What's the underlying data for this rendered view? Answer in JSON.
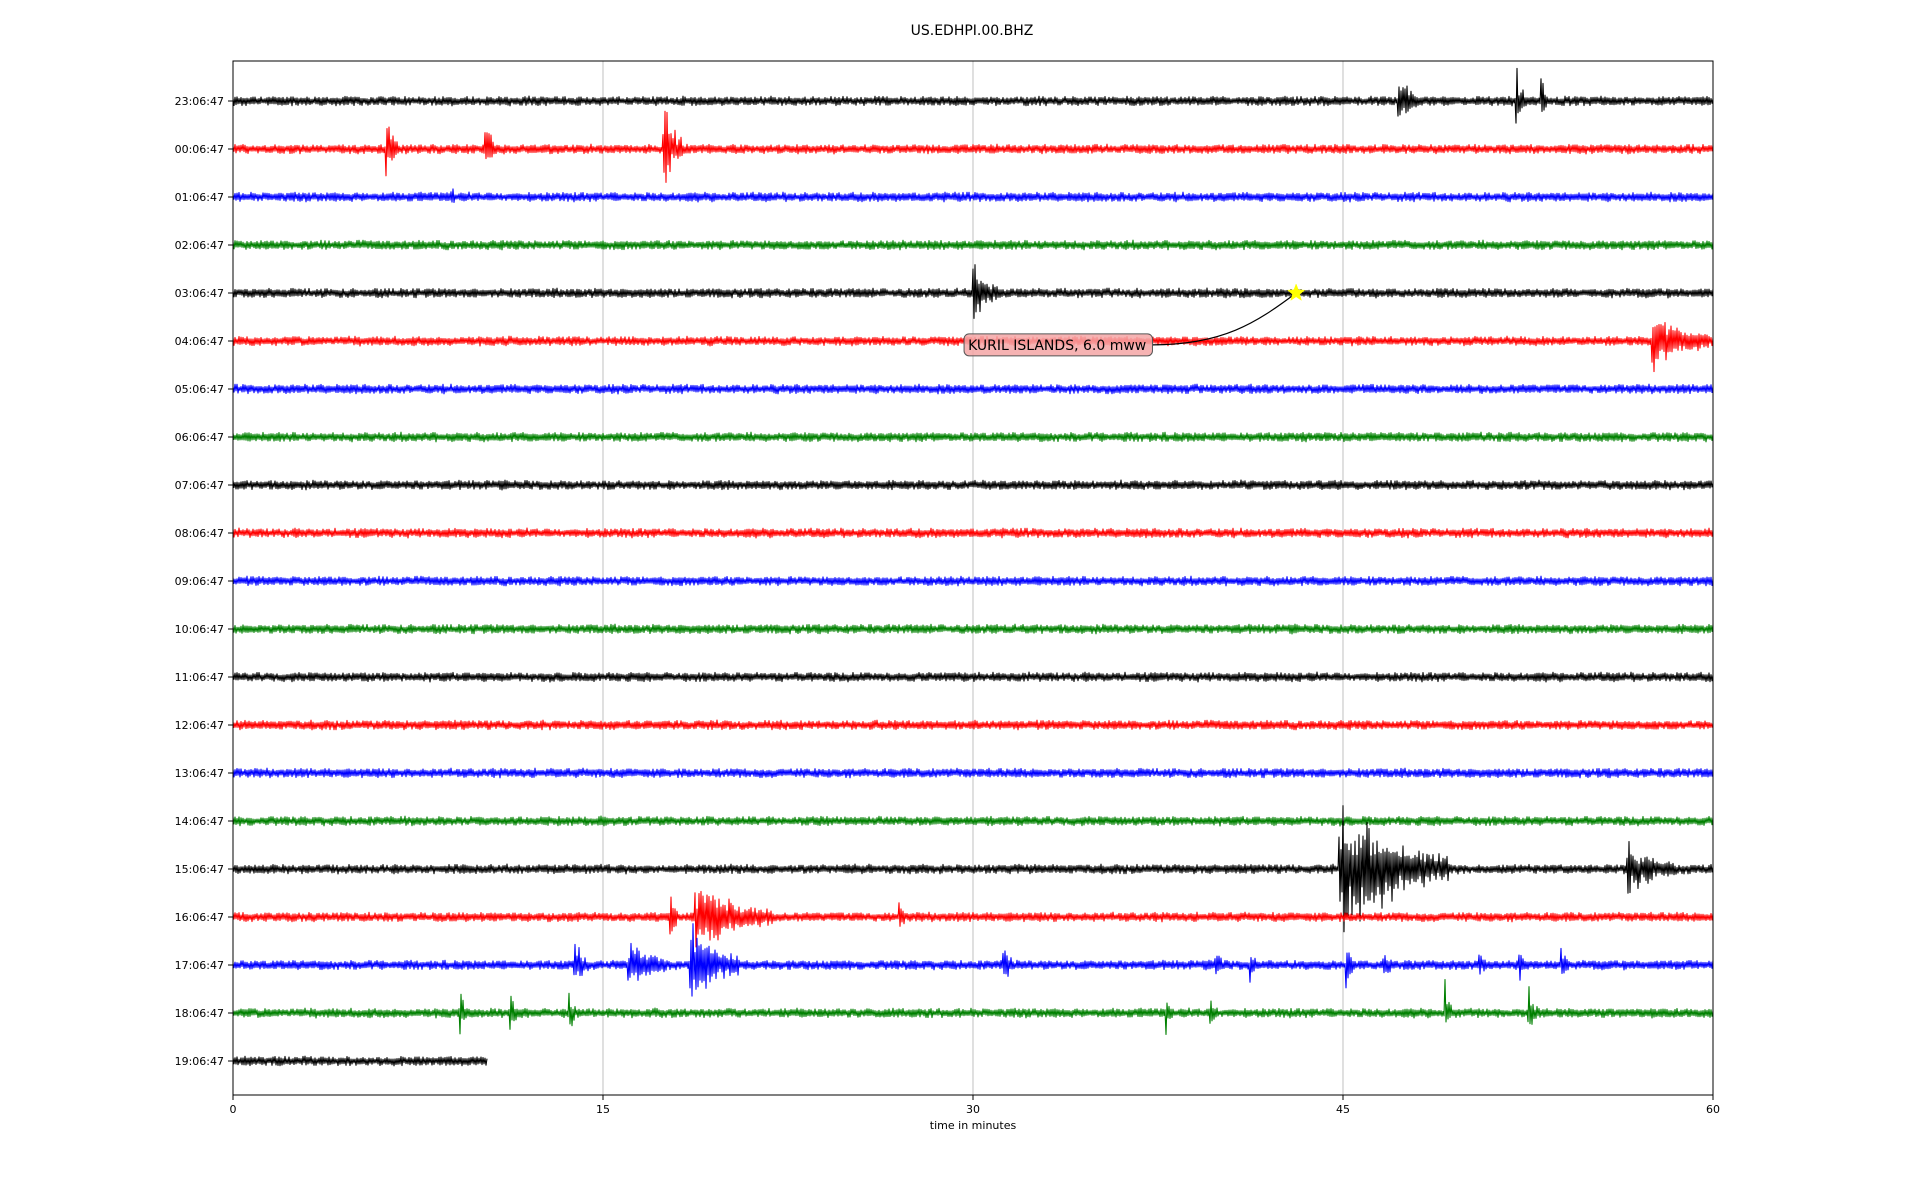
{
  "chart_data": {
    "type": "line",
    "subtype": "seismogram-helicorder",
    "title": "US.EDHPI.00.BHZ",
    "xlabel": "time in minutes",
    "ylabel": "",
    "xlim": [
      0,
      60
    ],
    "x_ticks": [
      "0",
      "15",
      "30",
      "45",
      "60"
    ],
    "x_tick_values": [
      0,
      15,
      30,
      45,
      60
    ],
    "grid": "vertical lines at x ticks",
    "colors_cycle": [
      "#000000",
      "#ff0000",
      "#0000ff",
      "#008000"
    ],
    "rows": [
      {
        "label": "23:06:47",
        "end_minute": 60,
        "bursts": [
          {
            "t": 47.2,
            "amp": 1.0,
            "dur": 0.8
          },
          {
            "t": 52.0,
            "amp": 1.1,
            "dur": 0.4
          },
          {
            "t": 53.0,
            "amp": 0.9,
            "dur": 0.3
          }
        ]
      },
      {
        "label": "00:06:47",
        "end_minute": 60,
        "bursts": [
          {
            "t": 6.2,
            "amp": 1.2,
            "dur": 0.5
          },
          {
            "t": 10.2,
            "amp": 1.0,
            "dur": 0.5
          },
          {
            "t": 17.4,
            "amp": 1.6,
            "dur": 0.9
          }
        ]
      },
      {
        "label": "01:06:47",
        "end_minute": 60,
        "bursts": [
          {
            "t": 8.8,
            "amp": 0.4,
            "dur": 0.2
          }
        ]
      },
      {
        "label": "02:06:47",
        "end_minute": 60,
        "bursts": []
      },
      {
        "label": "03:06:47",
        "end_minute": 60,
        "bursts": [
          {
            "t": 30.0,
            "amp": 1.0,
            "dur": 1.0
          }
        ]
      },
      {
        "label": "04:06:47",
        "end_minute": 60,
        "bursts": [
          {
            "t": 57.5,
            "amp": 0.9,
            "dur": 2.3
          }
        ]
      },
      {
        "label": "05:06:47",
        "end_minute": 60,
        "bursts": []
      },
      {
        "label": "06:06:47",
        "end_minute": 60,
        "bursts": []
      },
      {
        "label": "07:06:47",
        "end_minute": 60,
        "bursts": []
      },
      {
        "label": "08:06:47",
        "end_minute": 60,
        "bursts": []
      },
      {
        "label": "09:06:47",
        "end_minute": 60,
        "bursts": []
      },
      {
        "label": "10:06:47",
        "end_minute": 60,
        "bursts": []
      },
      {
        "label": "11:06:47",
        "end_minute": 60,
        "bursts": []
      },
      {
        "label": "12:06:47",
        "end_minute": 60,
        "bursts": []
      },
      {
        "label": "13:06:47",
        "end_minute": 60,
        "bursts": []
      },
      {
        "label": "14:06:47",
        "end_minute": 60,
        "bursts": []
      },
      {
        "label": "15:06:47",
        "end_minute": 60,
        "bursts": [
          {
            "t": 44.8,
            "amp": 2.5,
            "dur": 4.5
          },
          {
            "t": 56.5,
            "amp": 0.8,
            "dur": 2.0
          }
        ]
      },
      {
        "label": "16:06:47",
        "end_minute": 60,
        "bursts": [
          {
            "t": 17.7,
            "amp": 1.2,
            "dur": 0.3
          },
          {
            "t": 18.7,
            "amp": 1.3,
            "dur": 3.2
          },
          {
            "t": 27.0,
            "amp": 0.4,
            "dur": 0.3
          }
        ]
      },
      {
        "label": "17:06:47",
        "end_minute": 60,
        "bursts": [
          {
            "t": 13.8,
            "amp": 0.9,
            "dur": 0.6
          },
          {
            "t": 16.0,
            "amp": 0.8,
            "dur": 1.6
          },
          {
            "t": 18.5,
            "amp": 1.5,
            "dur": 2.0
          },
          {
            "t": 31.2,
            "amp": 0.8,
            "dur": 0.4
          },
          {
            "t": 39.8,
            "amp": 0.7,
            "dur": 0.3
          },
          {
            "t": 41.2,
            "amp": 0.6,
            "dur": 0.3
          },
          {
            "t": 45.1,
            "amp": 0.8,
            "dur": 0.4
          },
          {
            "t": 46.6,
            "amp": 0.9,
            "dur": 0.4
          },
          {
            "t": 50.5,
            "amp": 0.5,
            "dur": 0.3
          },
          {
            "t": 52.1,
            "amp": 0.7,
            "dur": 0.3
          },
          {
            "t": 53.8,
            "amp": 0.8,
            "dur": 0.3
          }
        ]
      },
      {
        "label": "18:06:47",
        "end_minute": 60,
        "bursts": [
          {
            "t": 9.2,
            "amp": 0.6,
            "dur": 0.3
          },
          {
            "t": 11.2,
            "amp": 0.9,
            "dur": 0.3
          },
          {
            "t": 13.6,
            "amp": 0.8,
            "dur": 0.3
          },
          {
            "t": 37.8,
            "amp": 0.7,
            "dur": 0.2
          },
          {
            "t": 39.6,
            "amp": 0.8,
            "dur": 0.3
          },
          {
            "t": 49.1,
            "amp": 1.1,
            "dur": 0.3
          },
          {
            "t": 52.5,
            "amp": 0.9,
            "dur": 0.4
          }
        ]
      },
      {
        "label": "19:06:47",
        "end_minute": 10.3,
        "bursts": []
      }
    ],
    "annotations": [
      {
        "text": "KURIL ISLANDS, 6.0 mww",
        "marker": "star",
        "marker_color": "#ffff00",
        "label_bg": "#f4a6a6",
        "event_minute": 43.1,
        "event_row": 4,
        "label_minute": 29.8,
        "label_row": 5.08
      }
    ]
  }
}
